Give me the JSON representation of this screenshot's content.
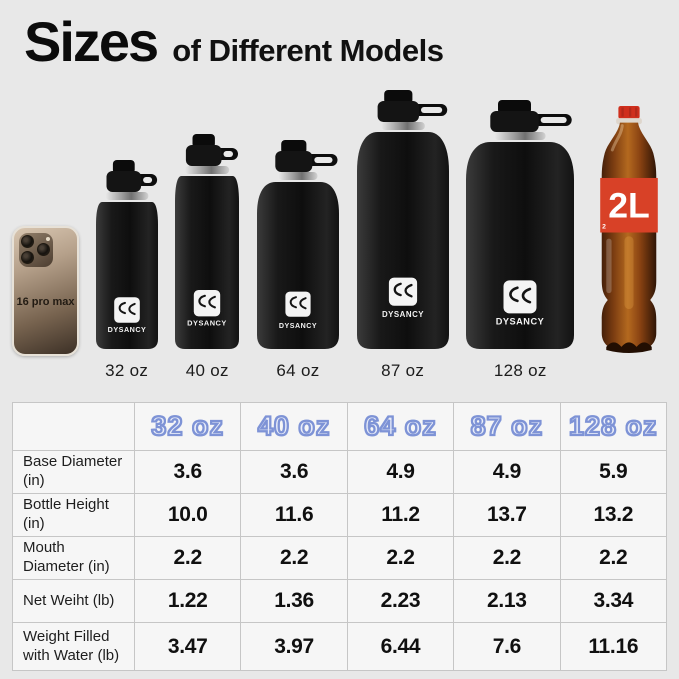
{
  "title": {
    "main": "Sizes",
    "sub": "of Different Models"
  },
  "lineup": {
    "phone": {
      "label": "16 pro max"
    },
    "brand": "DYSANCY",
    "bottles": [
      {
        "label": "32 oz"
      },
      {
        "label": "40 oz"
      },
      {
        "label": "64 oz"
      },
      {
        "label": "87 oz"
      },
      {
        "label": "128 oz"
      }
    ],
    "cola": {
      "label": "2L",
      "corner_mark": "2"
    }
  },
  "chart_data": {
    "type": "table",
    "title": "Sizes of Different Models",
    "columns": [
      "32 oz",
      "40 oz",
      "64 oz",
      "87 oz",
      "128 oz"
    ],
    "rows": [
      {
        "label": "Base Diameter (in)",
        "values": [
          "3.6",
          "3.6",
          "4.9",
          "4.9",
          "5.9"
        ]
      },
      {
        "label": "Bottle Height (in)",
        "values": [
          "10.0",
          "11.6",
          "11.2",
          "13.7",
          "13.2"
        ]
      },
      {
        "label": "Mouth Diameter (in)",
        "values": [
          "2.2",
          "2.2",
          "2.2",
          "2.2",
          "2.2"
        ]
      },
      {
        "label": "Net Weiht (lb)",
        "values": [
          "1.22",
          "1.36",
          "2.23",
          "2.13",
          "3.34"
        ]
      },
      {
        "label": "Weight Filled with Water (lb)",
        "values": [
          "3.47",
          "3.97",
          "6.44",
          "7.6",
          "11.16"
        ]
      }
    ]
  },
  "colors": {
    "background": "#e8e8e8",
    "table_cell": "#f6f6f6",
    "table_grid": "#c6c6c6",
    "header_fill": "#e9edf9",
    "header_outline": "#7e93d6",
    "bottle_body": "#141414",
    "cola_red": "#d84127"
  }
}
